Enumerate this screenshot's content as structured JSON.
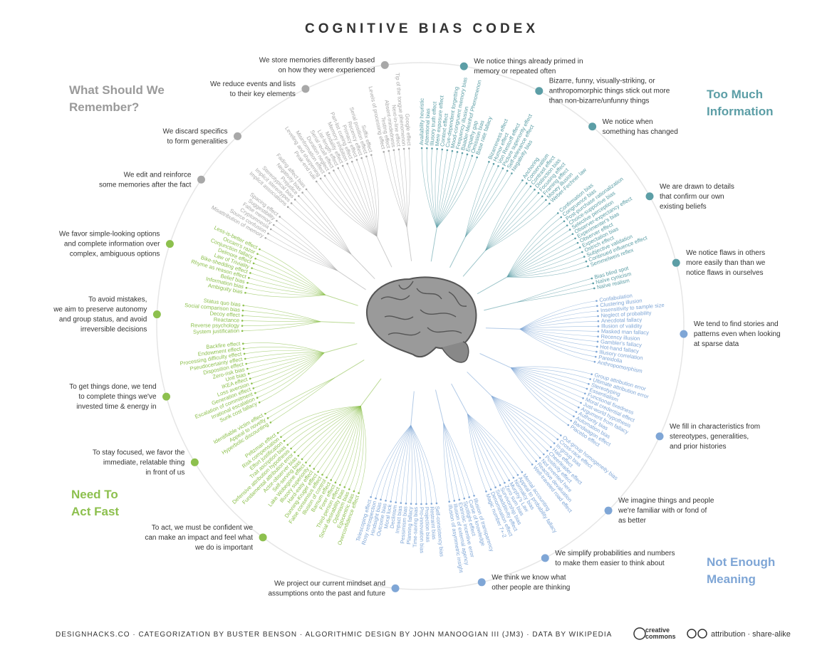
{
  "title": "COGNITIVE BIAS CODEX",
  "footer": {
    "credits": "DESIGNHACKS.CO · CATEGORIZATION BY BUSTER BENSON · ALGORITHMIC DESIGN BY JOHN MANOOGIAN III (JM3) · DATA BY WIKIPEDIA",
    "cc": [
      "creative",
      "commons"
    ],
    "license": "attribution · share-alike"
  },
  "quadrants": [
    {
      "name": [
        "Too Much",
        "Information"
      ],
      "color": "#5c9ea6",
      "groups": [
        {
          "lines": [
            "We notice things already primed in",
            "memory or repeated often"
          ],
          "biases": [
            "Availability heuristic",
            "Attentional bias",
            "Illusory truth effect",
            "Mere exposure effect",
            "Context effect",
            "Cue-dependent forgetting",
            "Mood-congruent memory bias",
            "Frequency illusion",
            "Baader-Meinhof Phenomenon",
            "Empathy gap",
            "Omission bias",
            "Base rate fallacy"
          ]
        },
        {
          "lines": [
            "Bizarre, funny, visually-striking, or",
            "anthropomorphic things stick out more",
            "than non-bizarre/unfunny things"
          ],
          "biases": [
            "Bizarreness effect",
            "Humor effect",
            "Von Restorff effect",
            "Picture superiority effect",
            "Self-relevance effect",
            "Negativity bias"
          ]
        },
        {
          "lines": [
            "We notice when",
            "something has changed"
          ],
          "biases": [
            "Anchoring",
            "Conservatism",
            "Contrast effect",
            "Distinction bias",
            "Focusing effect",
            "Framing effect",
            "Money illusion",
            "Weber-Fechner law"
          ]
        },
        {
          "lines": [
            "We are drawn to details",
            "that confirm our own",
            "existing beliefs"
          ],
          "biases": [
            "Confirmation bias",
            "Congruence bias",
            "Post-purchase rationalization",
            "Choice-supportive bias",
            "Selective perception",
            "Observer-expectancy effect",
            "Experimenter's bias",
            "Observer effect",
            "Expectation bias",
            "Ostrich effect",
            "Subjective validation",
            "Continued influence effect",
            "Semmelweis reflex"
          ]
        },
        {
          "lines": [
            "We notice flaws in others",
            "more easily than than we",
            "notice flaws in ourselves"
          ],
          "biases": [
            "Bias blind spot",
            "Naïve cynicism",
            "Naïve realism"
          ]
        }
      ]
    },
    {
      "name": [
        "Not Enough",
        "Meaning"
      ],
      "color": "#7fa6d6",
      "groups": [
        {
          "lines": [
            "We tend to find stories and",
            "patterns even when looking",
            "at sparse data"
          ],
          "biases": [
            "Confabulation",
            "Clustering illusion",
            "Insensitivity to sample size",
            "Neglect of probability",
            "Anecdotal fallacy",
            "Illusion of validity",
            "Masked man fallacy",
            "Recency illusion",
            "Gambler's fallacy",
            "Hot-hand fallacy",
            "Illusory correlation",
            "Pareidolia",
            "Anthropomorphism"
          ]
        },
        {
          "lines": [
            "We fill in characteristics from",
            "stereotypes, generalities,",
            "and prior histories"
          ],
          "biases": [
            "Group attribution error",
            "Ultimate attribution error",
            "Stereotyping",
            "Essentialism",
            "Functional fixedness",
            "Moral credential effect",
            "Just-world hypothesis",
            "Argument from fallacy",
            "Authority bias",
            "Automation bias",
            "Bandwagon effect",
            "Placebo effect"
          ]
        },
        {
          "lines": [
            "We imagine things and people",
            "we're familiar with or fond of",
            "as better"
          ],
          "biases": [
            "Out-group homogeneity bias",
            "Cross-race effect",
            "In-group bias",
            "Halo effect",
            "Cheerleader effect",
            "Positivity effect",
            "Not invented here",
            "Reactive devaluation",
            "Well-traveled road effect"
          ]
        },
        {
          "lines": [
            "We simplify probabilities and numbers",
            "to make them easier to think about"
          ],
          "biases": [
            "Mental accounting",
            "Appeal to probability fallacy",
            "Normalcy bias",
            "Murphy's Law",
            "Zero sum bias",
            "Survivorship bias",
            "Subadditivity effect",
            "Denomination effect",
            "Magic number 7+-2"
          ]
        },
        {
          "lines": [
            "We think we know what",
            "other people are thinking"
          ],
          "biases": [
            "Illusion of transparency",
            "Curse of knowledge",
            "Spotlight effect",
            "Extrinsic incentive error",
            "Illusion of external agency",
            "Illusion of asymmetric insight"
          ]
        },
        {
          "lines": [
            "We project our current mindset and",
            "assumptions onto the past and future"
          ],
          "biases": [
            "Self-consistency bias",
            "Restraint bias",
            "Projection bias",
            "Pro-innovation bias",
            "Time-saving bias",
            "Planning fallacy",
            "Pessimism bias",
            "Impact bias",
            "Declinism",
            "Moral luck",
            "Outcome bias",
            "Hindsight bias",
            "Rosy retrospection",
            "Telescoping effect"
          ]
        }
      ]
    },
    {
      "name": [
        "Need To",
        "Act Fast"
      ],
      "color": "#8dc04e",
      "groups": [
        {
          "lines": [
            "To act, we must be confident we",
            "can make an impact and feel what",
            "we do is important"
          ],
          "biases": [
            "Overconfidence effect",
            "Egocentric bias",
            "Optimism bias",
            "Social desirability bias",
            "Third-person effect",
            "Forer effect",
            "Barnum effect",
            "Illusion of control",
            "False consensus effect",
            "Dunning-Kruger effect",
            "Hard-easy effect",
            "Illusory superiority",
            "Lake Wobegone effect",
            "Self-serving bias",
            "Actor-observer bias",
            "Fundamental attribution error",
            "Defensive attribution hypothesis",
            "Trait ascription bias",
            "Effort justification",
            "Risk compensation",
            "Peltzman effect"
          ]
        },
        {
          "lines": [
            "To stay focused, we favor the",
            "immediate, relatable thing",
            "in front of us"
          ],
          "biases": [
            "Hyperbolic discounting",
            "Appeal to novelty",
            "Identifiable victim effect"
          ]
        },
        {
          "lines": [
            "To get things done, we tend",
            "to complete things we've",
            "invested time & energy in"
          ],
          "biases": [
            "Sunk cost fallacy",
            "Irrational escalation",
            "Escalation of commitment",
            "Generation effect",
            "Loss aversion",
            "IKEA effect",
            "Unit bias",
            "Zero-risk bias",
            "Disposition effect",
            "Pseudocertainty effect",
            "Processing difficulty effect",
            "Endowment effect",
            "Backfire effect"
          ]
        },
        {
          "lines": [
            "To avoid mistakes,",
            "we aim to preserve autonomy",
            "and group status, and avoid",
            "irreversible decisions"
          ],
          "biases": [
            "System justification",
            "Reverse psychology",
            "Reactance",
            "Decoy effect",
            "Social comparison bias",
            "Status quo bias"
          ]
        },
        {
          "lines": [
            "We favor simple-looking options",
            "and complete information over",
            "complex, ambiguous options"
          ],
          "biases": [
            "Ambiguity bias",
            "Information bias",
            "Belief bias",
            "Rhyme as reason effect",
            "Bike-shedding effect",
            "Law of Triviality",
            "Delmore effect",
            "Conjunction fallacy",
            "Occam's razor",
            "Less-is-better effect"
          ]
        }
      ]
    },
    {
      "name": [
        "What Should We",
        "Remember?"
      ],
      "color": "#a8a8a8",
      "groups": [
        {
          "lines": [
            "We edit and reinforce",
            "some memories after the fact"
          ],
          "biases": [
            "Misattribution of memory",
            "Source confusion",
            "Cryptomnesia",
            "False memory",
            "Suggestibility",
            "Spacing effect"
          ]
        },
        {
          "lines": [
            "We discard specifics",
            "to form generalities"
          ],
          "biases": [
            "Implicit associations",
            "Implicit stereotypes",
            "Stereotypical bias",
            "Prejudice",
            "Negativity bias",
            "Fading affect bias"
          ]
        },
        {
          "lines": [
            "We reduce events and lists",
            "to their key elements"
          ],
          "biases": [
            "Peak-end rule",
            "Leveling and sharpening",
            "Misinformation effect",
            "Duration neglect",
            "Serial recall effect",
            "List-length effect",
            "Modality effect",
            "Memory inhibition",
            "Part-list cueing effect",
            "Primacy effect",
            "Recency effect",
            "Serial position effect",
            "Suffix effect"
          ]
        },
        {
          "lines": [
            "We store memories differently based",
            "on how they were experienced"
          ],
          "biases": [
            "Levels of processing effect",
            "Testing effect",
            "Absent-mindedness",
            "Next-in-line effect",
            "Tip of the tongue phenomenon",
            "Google effect"
          ]
        }
      ]
    }
  ]
}
